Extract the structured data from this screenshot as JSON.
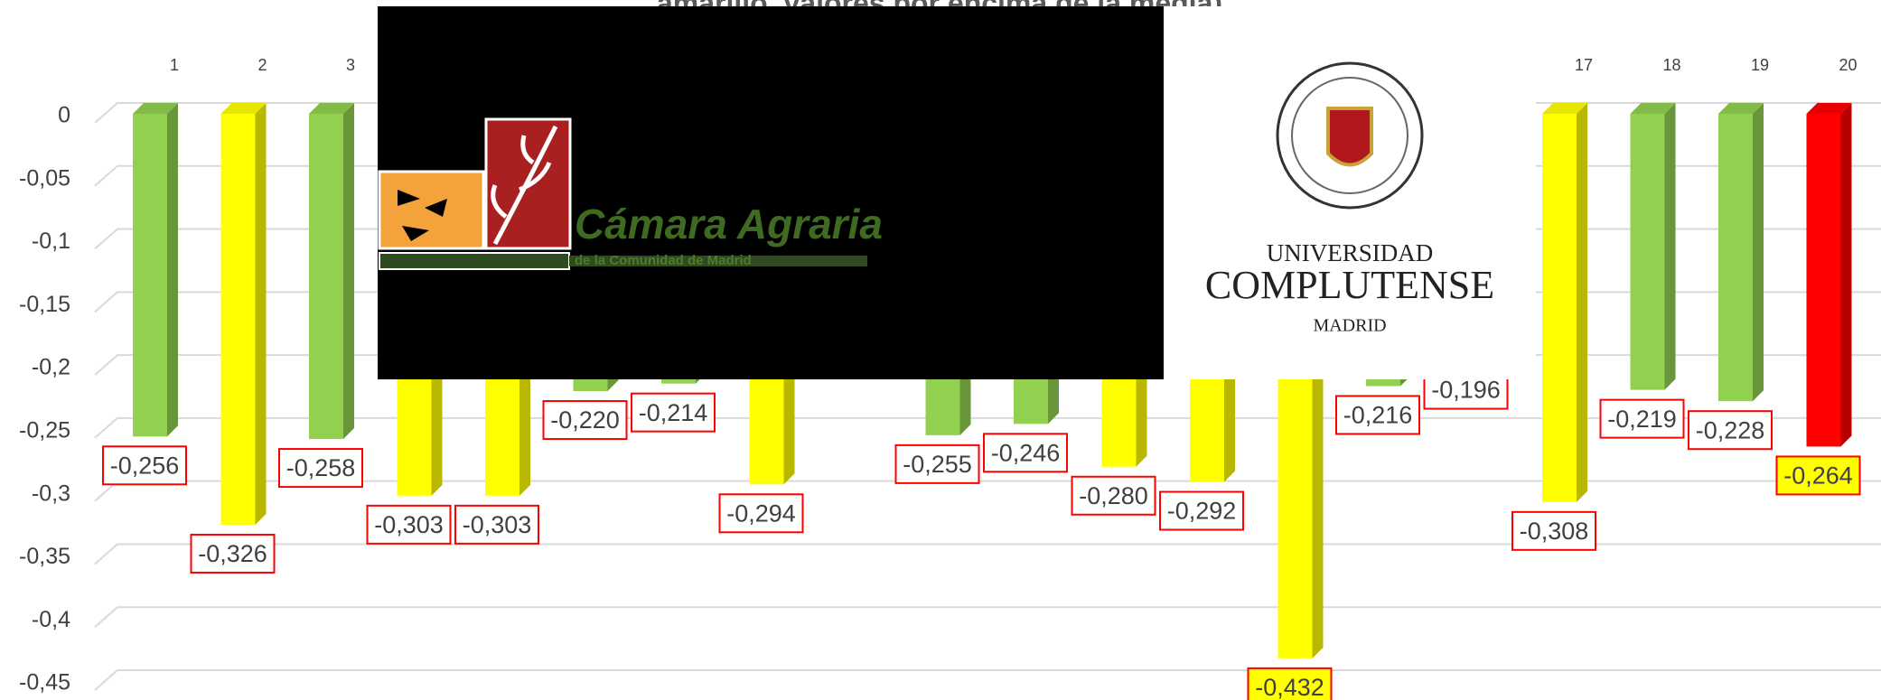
{
  "chart_data": {
    "type": "bar3d",
    "title": "amarillo, valores por encima de la media)",
    "categories": [
      "1",
      "2",
      "3",
      null,
      null,
      null,
      null,
      null,
      null,
      null,
      null,
      null,
      null,
      null,
      null,
      null,
      "17",
      "18",
      "19",
      "20"
    ],
    "values": [
      -0.256,
      -0.326,
      -0.258,
      -0.303,
      -0.303,
      -0.22,
      -0.214,
      -0.294,
      null,
      -0.255,
      -0.246,
      -0.28,
      -0.292,
      -0.432,
      -0.216,
      -0.196,
      -0.308,
      -0.219,
      -0.228,
      -0.264
    ],
    "value_labels": [
      "-0,256",
      "-0,326",
      "-0,258",
      "-0,303",
      "-0,303",
      "-0,220",
      "-0,214",
      "-0,294",
      null,
      "-0,255",
      "-0,246",
      "-0,280",
      "-0,292",
      "-0,432",
      "-0,216",
      "-0,196",
      "-0,308",
      "-0,219",
      "-0,228",
      "-0,264"
    ],
    "colors": [
      "#92d050",
      "#ffff00",
      "#92d050",
      "#ffff00",
      "#ffff00",
      "#92d050",
      "#92d050",
      "#ffff00",
      null,
      "#92d050",
      "#92d050",
      "#ffff00",
      "#ffff00",
      "#ffff00",
      "#92d050",
      "#92d050",
      "#ffff00",
      "#92d050",
      "#92d050",
      "#ff0000"
    ],
    "value_label_colors": [
      "#ffffff",
      "#ffffff",
      "#ffffff",
      "#ffffff",
      "#ffffff",
      "#ffffff",
      "#ffffff",
      "#ffffff",
      null,
      "#ffffff",
      "#ffffff",
      "#ffffff",
      "#ffffff",
      "#ffff00",
      "#ffffff",
      "#ffffff",
      "#ffffff",
      "#ffffff",
      "#ffffff",
      "#ffff00"
    ],
    "ylim": [
      -0.45,
      0
    ],
    "yticks": [
      0,
      {
        "value": -0.05,
        "label": "-0,05"
      },
      {
        "value": -0.1,
        "label": "-0,1"
      },
      {
        "value": -0.15,
        "label": "-0,15"
      },
      {
        "value": -0.2,
        "label": "-0,2"
      },
      {
        "value": -0.25,
        "label": "-0,25"
      },
      {
        "value": -0.3,
        "label": "-0,3"
      },
      {
        "value": -0.35,
        "label": "-0,35"
      },
      {
        "value": -0.4,
        "label": "-0,4"
      },
      {
        "value": -0.45,
        "label": "-0,45"
      }
    ],
    "grid": true
  },
  "logos": {
    "camara": [
      "Cámara Agraria",
      "de la Comunidad de Madrid"
    ],
    "ucm": [
      "UNIVERSIDAD",
      "COMPLUTENSE",
      "MADRID"
    ]
  }
}
